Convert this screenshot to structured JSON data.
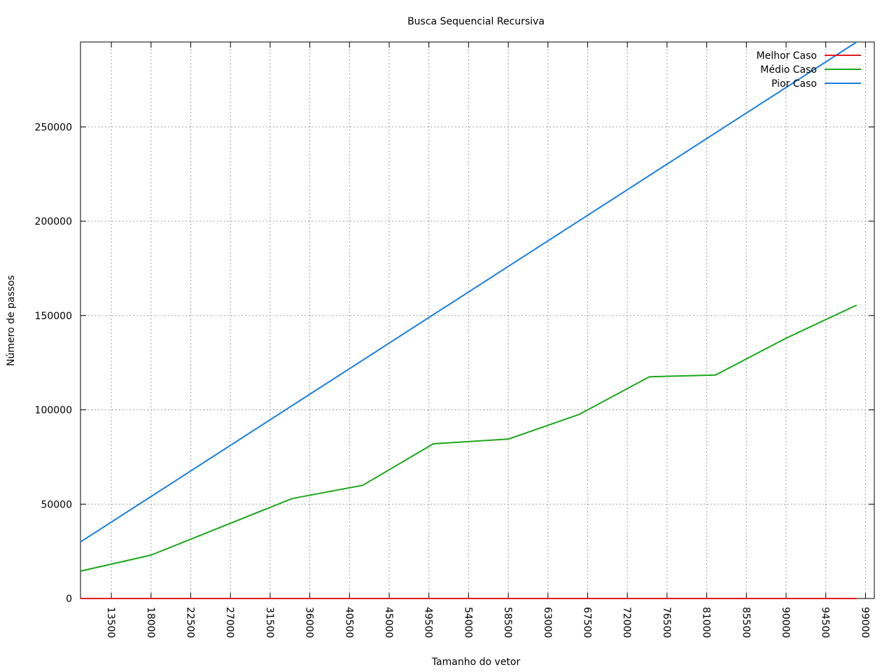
{
  "chart_data": {
    "type": "line",
    "title": "Busca Sequencial Recursiva",
    "xlabel": "Tamanho do vetor",
    "ylabel": "Número de passos",
    "xlim": [
      10000,
      100000
    ],
    "ylim": [
      0,
      295000
    ],
    "x_ticks": [
      13500,
      18000,
      22500,
      27000,
      31500,
      36000,
      40500,
      45000,
      49500,
      54000,
      58500,
      63000,
      67500,
      72000,
      76500,
      81000,
      85500,
      90000,
      94500,
      99000
    ],
    "x_tick_labels": [
      "13500",
      "18000",
      "22500",
      "27000",
      "31500",
      "36000",
      "40500",
      "45000",
      "49500",
      "54000",
      "58500",
      "63000",
      "67500",
      "72000",
      "76500",
      "81000",
      "85500",
      "90000",
      "94500",
      "99000"
    ],
    "y_ticks": [
      0,
      50000,
      100000,
      150000,
      200000,
      250000
    ],
    "y_tick_labels": [
      "0",
      "50000",
      "100000",
      "150000",
      "200000",
      "250000"
    ],
    "grid": true,
    "legend_position": "top-right",
    "series": [
      {
        "name": "Melhor Caso",
        "color": "#e41a1c",
        "x": [
          10000,
          98000
        ],
        "y": [
          1,
          1
        ]
      },
      {
        "name": "Médio Caso",
        "color": "#1aa81a",
        "x": [
          10000,
          18000,
          34000,
          42000,
          50000,
          58500,
          66500,
          74500,
          82000,
          90000,
          98000
        ],
        "y": [
          14500,
          23000,
          53000,
          60000,
          82000,
          84500,
          97500,
          117500,
          118500,
          138000,
          155500
        ]
      },
      {
        "name": "Pior Caso",
        "color": "#1a7ee0",
        "x": [
          10000,
          98000
        ],
        "y": [
          30000,
          295000
        ]
      }
    ]
  }
}
